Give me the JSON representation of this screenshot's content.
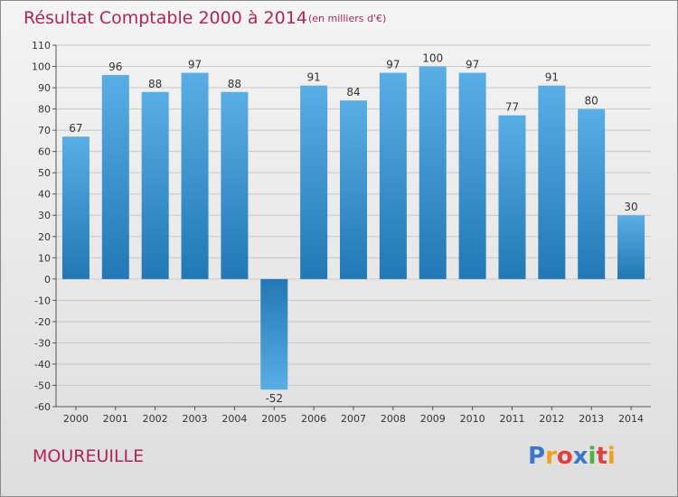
{
  "chart_data": {
    "type": "bar",
    "title": "Résultat Comptable 2000 à 2014",
    "subtitle": "(en milliers d'€)",
    "categories": [
      "2000",
      "2001",
      "2002",
      "2003",
      "2004",
      "2005",
      "2006",
      "2007",
      "2008",
      "2009",
      "2010",
      "2011",
      "2012",
      "2013",
      "2014"
    ],
    "values": [
      67,
      96,
      88,
      97,
      88,
      -52,
      91,
      84,
      97,
      100,
      97,
      77,
      91,
      80,
      30
    ],
    "ylim": [
      -60,
      110
    ],
    "yticks": [
      110,
      100,
      90,
      80,
      70,
      60,
      50,
      40,
      30,
      20,
      10,
      0,
      -10,
      -20,
      -30,
      -40,
      -50,
      -60
    ],
    "grid": true,
    "bar_color_top": "#5aaee6",
    "bar_color_bottom": "#2178b4",
    "title_color": "#b0245a"
  },
  "place_name": "MOUREUILLE",
  "logo": {
    "letters": [
      "P",
      "r",
      "o",
      "x",
      "i",
      "t",
      "i"
    ],
    "colors": [
      "#3c78c8",
      "#f0a020",
      "#e04040",
      "#3c78c8",
      "#50b040",
      "#e04040",
      "#f0a020"
    ]
  }
}
